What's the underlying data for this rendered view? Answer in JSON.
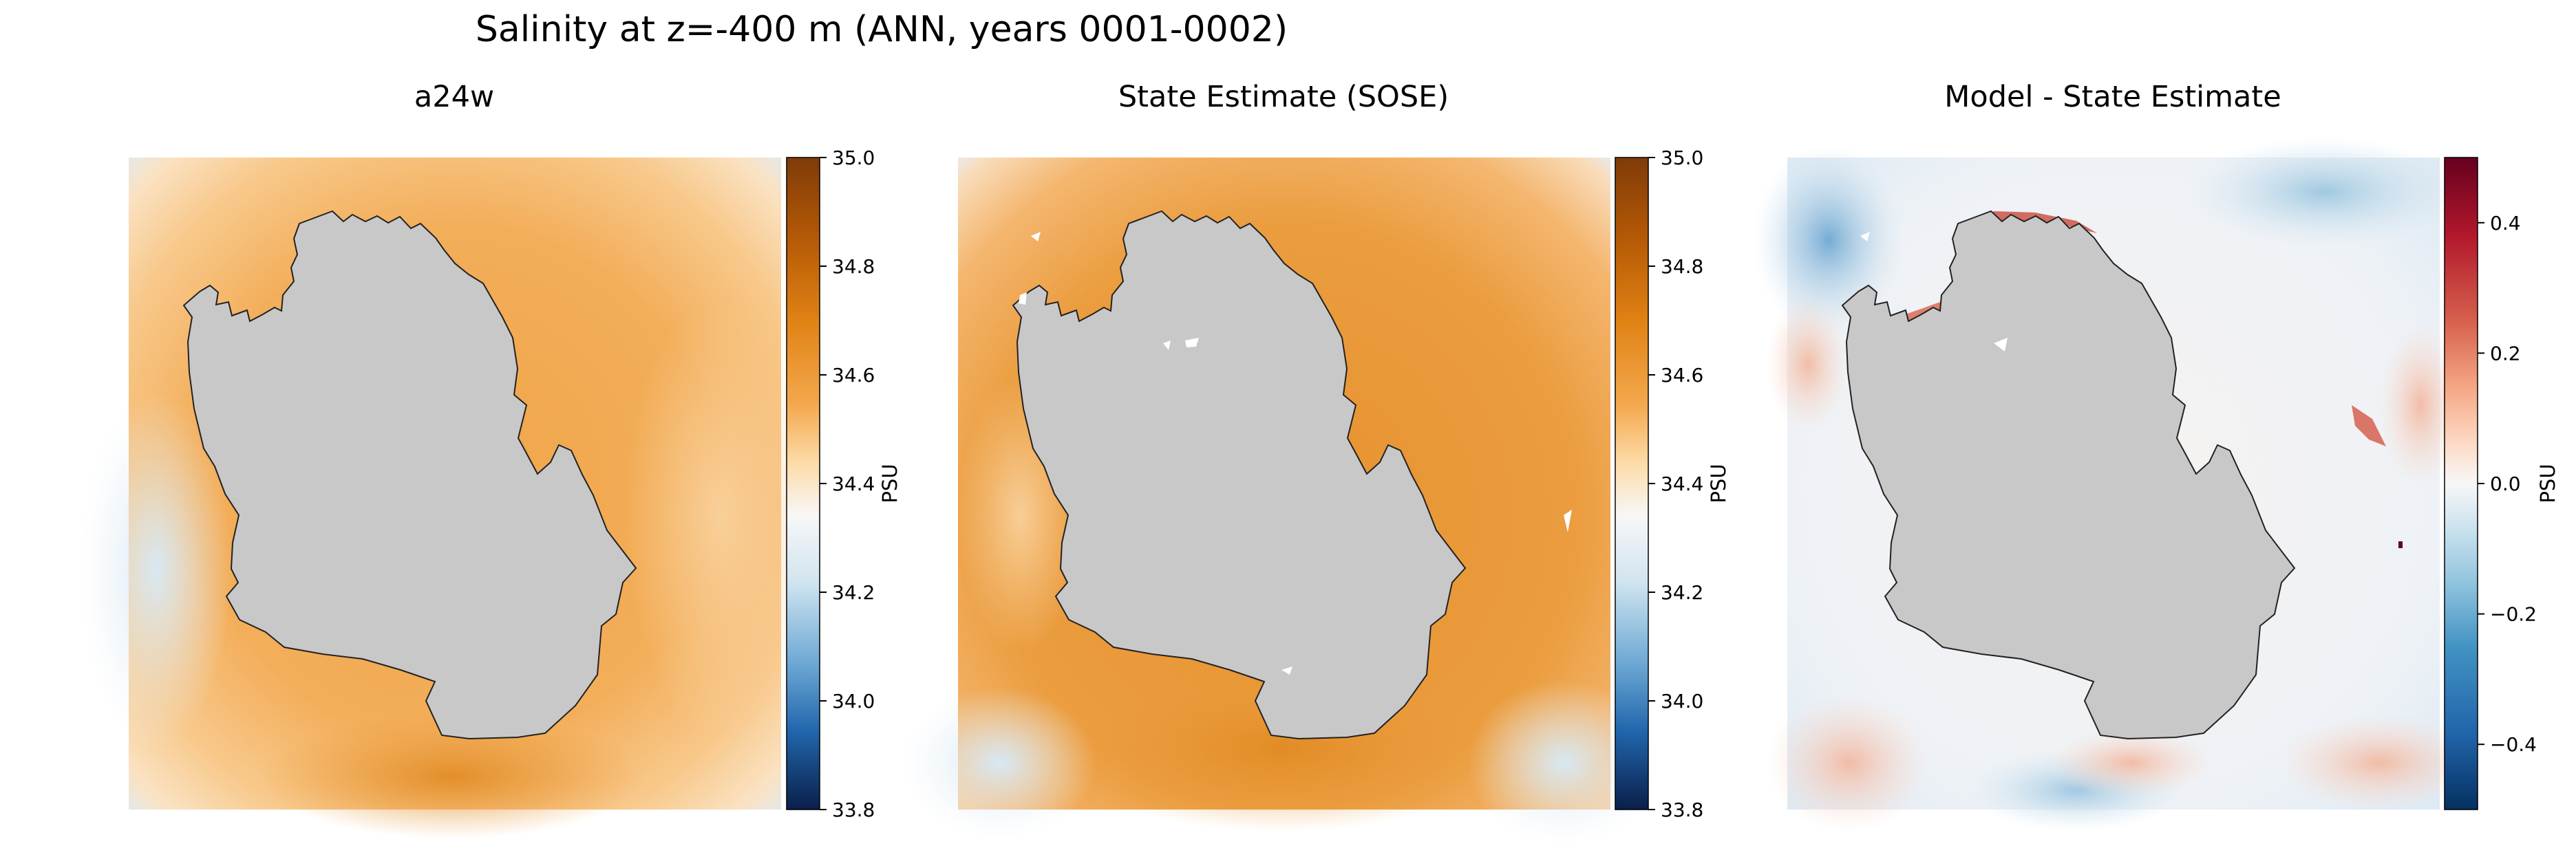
{
  "figure": {
    "title": "Salinity at z=-400 m (ANN, years 0001-0002)"
  },
  "chart_data": [
    {
      "type": "heatmap",
      "title": "a24w",
      "field": "modeled salinity at z=-400 m",
      "projection": "south polar stereographic",
      "colormap": "PuOr_r",
      "colorbar": {
        "label": "PSU",
        "ticks": [
          "35.0",
          "34.8",
          "34.6",
          "34.4",
          "34.2",
          "34.0",
          "33.8"
        ],
        "range": [
          33.8,
          35.0
        ]
      }
    },
    {
      "type": "heatmap",
      "title": "State Estimate (SOSE)",
      "field": "SOSE salinity at z=-400 m",
      "projection": "south polar stereographic",
      "colormap": "PuOr_r",
      "colorbar": {
        "label": "PSU",
        "ticks": [
          "35.0",
          "34.8",
          "34.6",
          "34.4",
          "34.2",
          "34.0",
          "33.8"
        ],
        "range": [
          33.8,
          35.0
        ]
      }
    },
    {
      "type": "heatmap",
      "title": "Model - State Estimate",
      "field": "salinity difference (model minus SOSE)",
      "projection": "south polar stereographic",
      "colormap": "RdBu_r",
      "colorbar": {
        "label": "PSU",
        "ticks": [
          "0.4",
          "0.2",
          "0.0",
          "−0.2",
          "−0.4"
        ],
        "range": [
          -0.5,
          0.5
        ]
      }
    }
  ],
  "colors": {
    "land": "#c8c8c8",
    "coast": "#222222",
    "orange_strong": "#e08a2a",
    "orange_mid": "#f2b060",
    "orange_light": "#fbd7a2",
    "neutral": "#f7f3ee",
    "blue_light": "#d4e6f1",
    "blue_mid": "#8fbfdc",
    "red_light": "#f4c3ae",
    "red_mid": "#dc6a56",
    "red_strong": "#b2182b",
    "white": "#ffffff"
  },
  "colormaps": {
    "PuOr_r": [
      "#2d004b",
      "#2166ac",
      "#6aa6d3",
      "#d1e5f0",
      "#f7f7f7",
      "#fddcaa",
      "#f4a94e",
      "#e08214",
      "#b35806",
      "#7f3b08"
    ],
    "RdBu_r": [
      "#053061",
      "#2166ac",
      "#4393c3",
      "#92c5de",
      "#d1e5f0",
      "#f7f7f7",
      "#fddbc7",
      "#f4a582",
      "#d6604d",
      "#b2182b",
      "#67001f"
    ]
  }
}
